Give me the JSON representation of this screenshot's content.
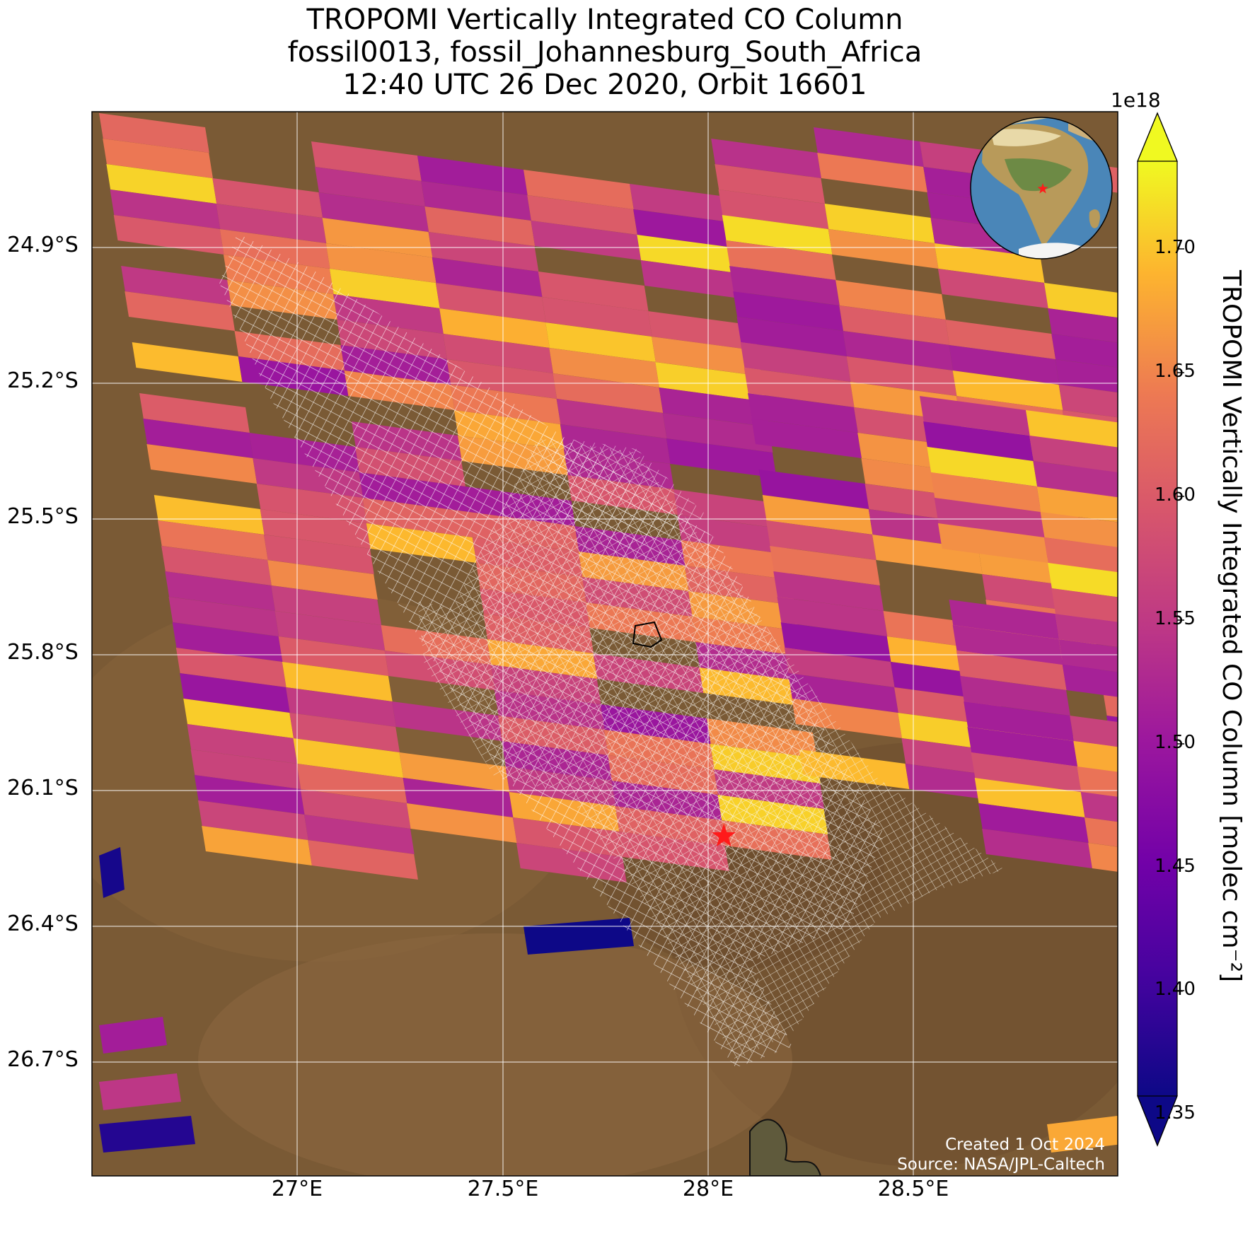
{
  "title": {
    "line1": "TROPOMI Vertically Integrated CO Column",
    "line2": "fossil0013, fossil_Johannesburg_South_Africa",
    "line3": "12:40 UTC 26 Dec 2020, Orbit 16601"
  },
  "map": {
    "lon_range": [
      26.5,
      29.0
    ],
    "lat_range": [
      -26.95,
      -24.6
    ],
    "lat_ticks": [
      "24.9°S",
      "25.2°S",
      "25.5°S",
      "25.8°S",
      "26.1°S",
      "26.4°S",
      "26.7°S"
    ],
    "lon_ticks": [
      "27°E",
      "27.5°E",
      "28°E",
      "28.5°E"
    ],
    "grid": true,
    "basemap": "satellite imagery",
    "site_marker": {
      "lon": 28.04,
      "lat": -26.2,
      "color": "#ff1a1a",
      "shape": "star"
    },
    "inset": "orthographic globe centered on Africa with red star at site"
  },
  "colorbar": {
    "colormap": "plasma",
    "min": 1.33e+18,
    "max": 1.74e+18,
    "exponent_label": "1e18",
    "tick_labels": [
      "1.70",
      "1.65",
      "1.60",
      "1.55",
      "1.50",
      "1.45",
      "1.40",
      "1.35"
    ],
    "label": "TROPOMI Vertically Integrated CO Column [molec cm⁻²]",
    "extend": "both"
  },
  "credits": {
    "created": "Created 1 Oct 2024",
    "source": "Source: NASA/JPL-Caltech"
  }
}
